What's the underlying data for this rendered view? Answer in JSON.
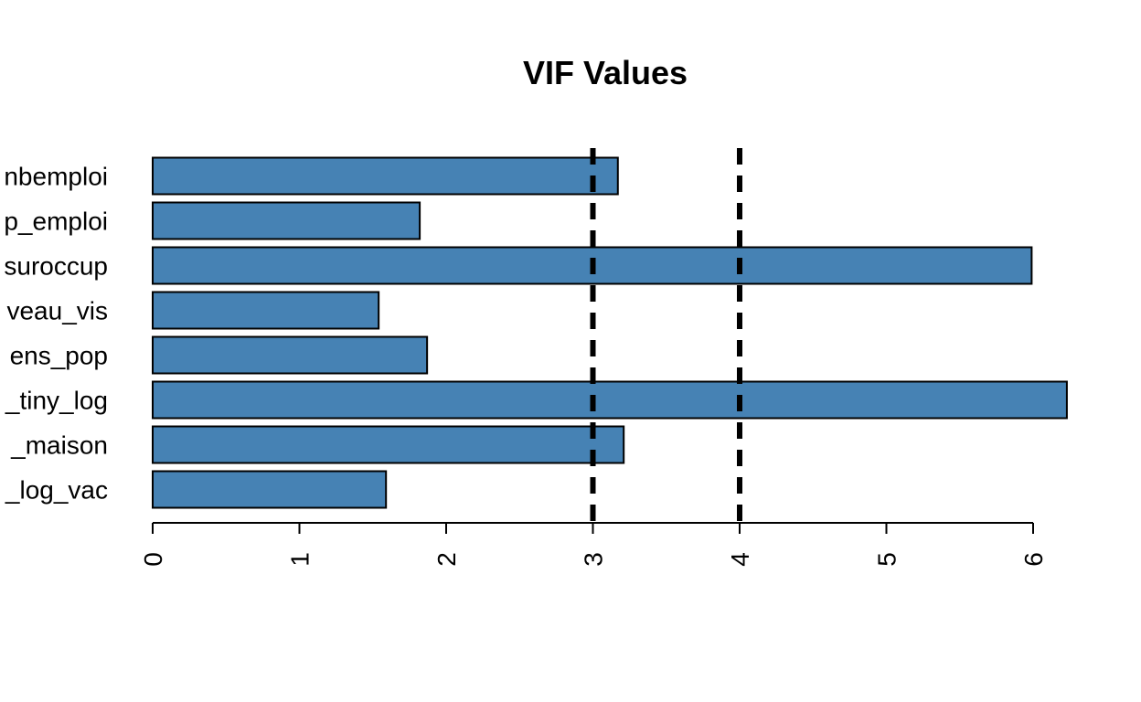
{
  "chart_data": {
    "type": "bar",
    "orientation": "horizontal",
    "title": "VIF Values",
    "xlabel": "",
    "ylabel": "",
    "xlim": [
      0,
      6.5
    ],
    "bar_color": "#4682b4",
    "categories": [
      "nbemploi",
      "p_emploi",
      "suroccup",
      "veau_vis",
      "ens_pop",
      "_tiny_log",
      "_maison",
      "_log_vac"
    ],
    "values": [
      3.17,
      1.82,
      5.99,
      1.54,
      1.87,
      6.23,
      3.21,
      1.59
    ],
    "x_ticks": [
      "0",
      "1",
      "2",
      "3",
      "4",
      "5",
      "6"
    ],
    "reference_lines": [
      {
        "value": 3,
        "style": "dashed"
      },
      {
        "value": 4,
        "style": "dashed"
      }
    ],
    "grid": false,
    "legend": "none"
  }
}
